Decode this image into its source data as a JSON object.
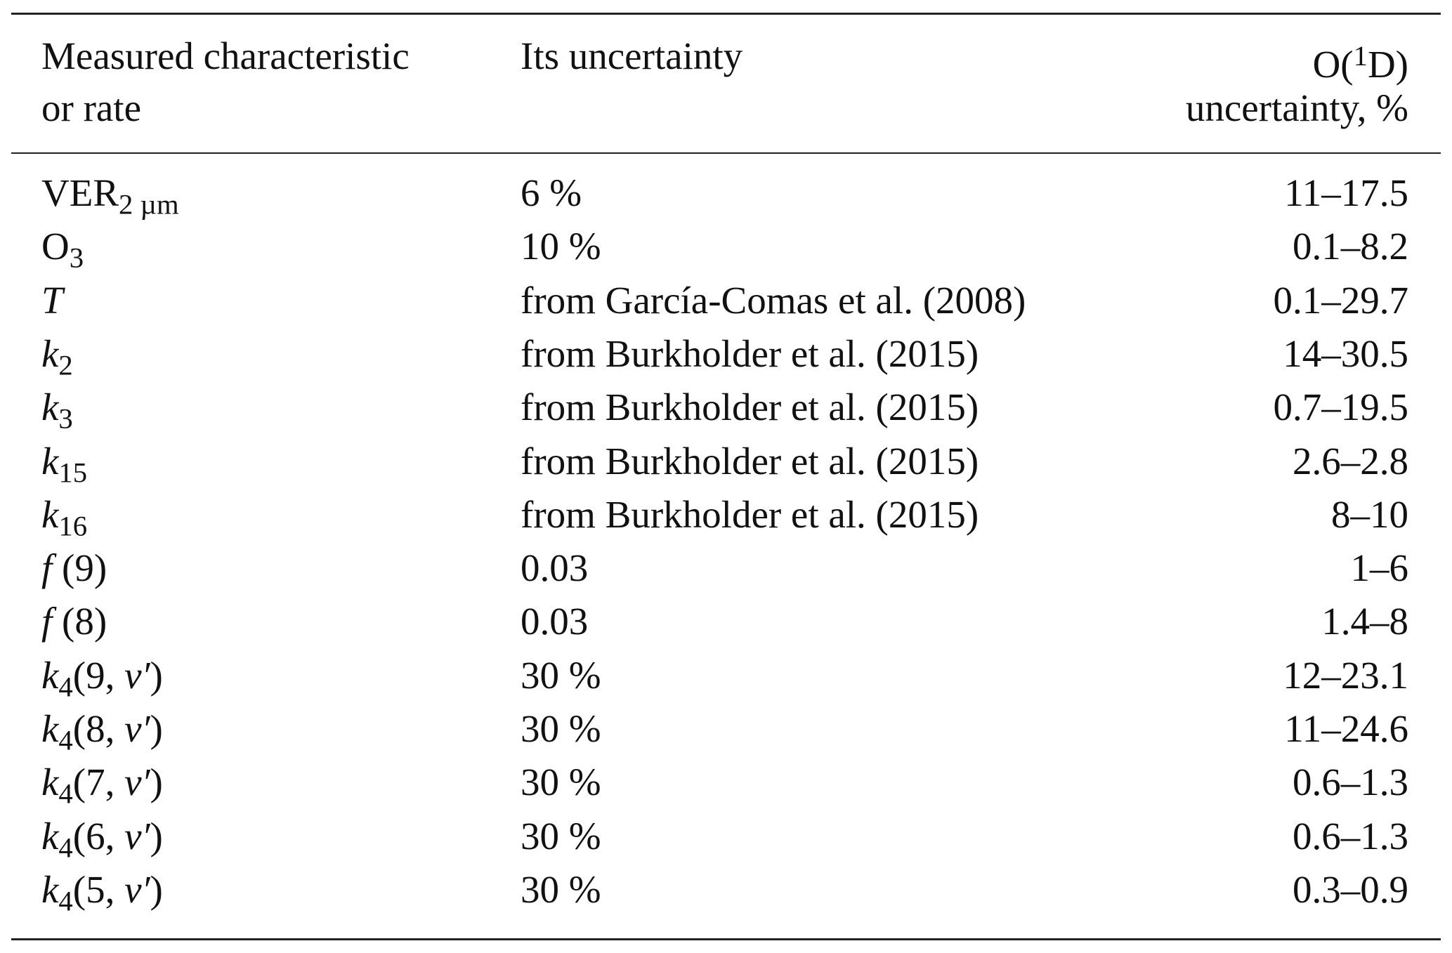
{
  "header": {
    "columns": [
      {
        "lines": [
          [
            {
              "t": "Measured characteristic"
            }
          ],
          [
            {
              "t": "or rate"
            }
          ]
        ]
      },
      {
        "lines": [
          [
            {
              "t": "Its uncertainty"
            }
          ]
        ]
      },
      {
        "lines": [
          [
            {
              "t": "O("
            },
            {
              "t": "1",
              "sup": true
            },
            {
              "t": "D)"
            }
          ],
          [
            {
              "t": "uncertainty, %"
            }
          ]
        ]
      }
    ]
  },
  "table": {
    "rows": [
      [
        [
          {
            "t": "VER"
          },
          {
            "t": "2 µm",
            "sub": true
          }
        ],
        "6 %",
        "11–17.5"
      ],
      [
        [
          {
            "t": "O"
          },
          {
            "t": "3",
            "sub": true
          }
        ],
        "10 %",
        "0.1–8.2"
      ],
      [
        [
          {
            "t": "T",
            "i": true
          }
        ],
        "from García-Comas et al. (2008)",
        "0.1–29.7"
      ],
      [
        [
          {
            "t": "k",
            "i": true
          },
          {
            "t": "2",
            "sub": true
          }
        ],
        "from Burkholder et al. (2015)",
        "14–30.5"
      ],
      [
        [
          {
            "t": "k",
            "i": true
          },
          {
            "t": "3",
            "sub": true
          }
        ],
        "from Burkholder et al. (2015)",
        "0.7–19.5"
      ],
      [
        [
          {
            "t": "k",
            "i": true
          },
          {
            "t": "15",
            "sub": true
          }
        ],
        "from Burkholder et al. (2015)",
        "2.6–2.8"
      ],
      [
        [
          {
            "t": "k",
            "i": true
          },
          {
            "t": "16",
            "sub": true
          }
        ],
        "from Burkholder et al. (2015)",
        "8–10"
      ],
      [
        [
          {
            "t": "f",
            "i": true
          },
          {
            "t": " (9)"
          }
        ],
        "0.03",
        "1–6"
      ],
      [
        [
          {
            "t": "f",
            "i": true
          },
          {
            "t": " (8)"
          }
        ],
        "0.03",
        "1.4–8"
      ],
      [
        [
          {
            "t": "k",
            "i": true
          },
          {
            "t": "4",
            "sub": true
          },
          {
            "t": "(9, "
          },
          {
            "t": "ν′",
            "i": true
          },
          {
            "t": ")"
          }
        ],
        "30 %",
        "12–23.1"
      ],
      [
        [
          {
            "t": "k",
            "i": true
          },
          {
            "t": "4",
            "sub": true
          },
          {
            "t": "(8, "
          },
          {
            "t": "ν′",
            "i": true
          },
          {
            "t": ")"
          }
        ],
        "30 %",
        "11–24.6"
      ],
      [
        [
          {
            "t": "k",
            "i": true
          },
          {
            "t": "4",
            "sub": true
          },
          {
            "t": "(7, "
          },
          {
            "t": "ν′",
            "i": true
          },
          {
            "t": ")"
          }
        ],
        "30 %",
        "0.6–1.3"
      ],
      [
        [
          {
            "t": "k",
            "i": true
          },
          {
            "t": "4",
            "sub": true
          },
          {
            "t": "(6, "
          },
          {
            "t": "ν′",
            "i": true
          },
          {
            "t": ")"
          }
        ],
        "30 %",
        "0.6–1.3"
      ],
      [
        [
          {
            "t": "k",
            "i": true
          },
          {
            "t": "4",
            "sub": true
          },
          {
            "t": "(5, "
          },
          {
            "t": "ν′",
            "i": true
          },
          {
            "t": ")"
          }
        ],
        "30 %",
        "0.3–0.9"
      ]
    ]
  }
}
